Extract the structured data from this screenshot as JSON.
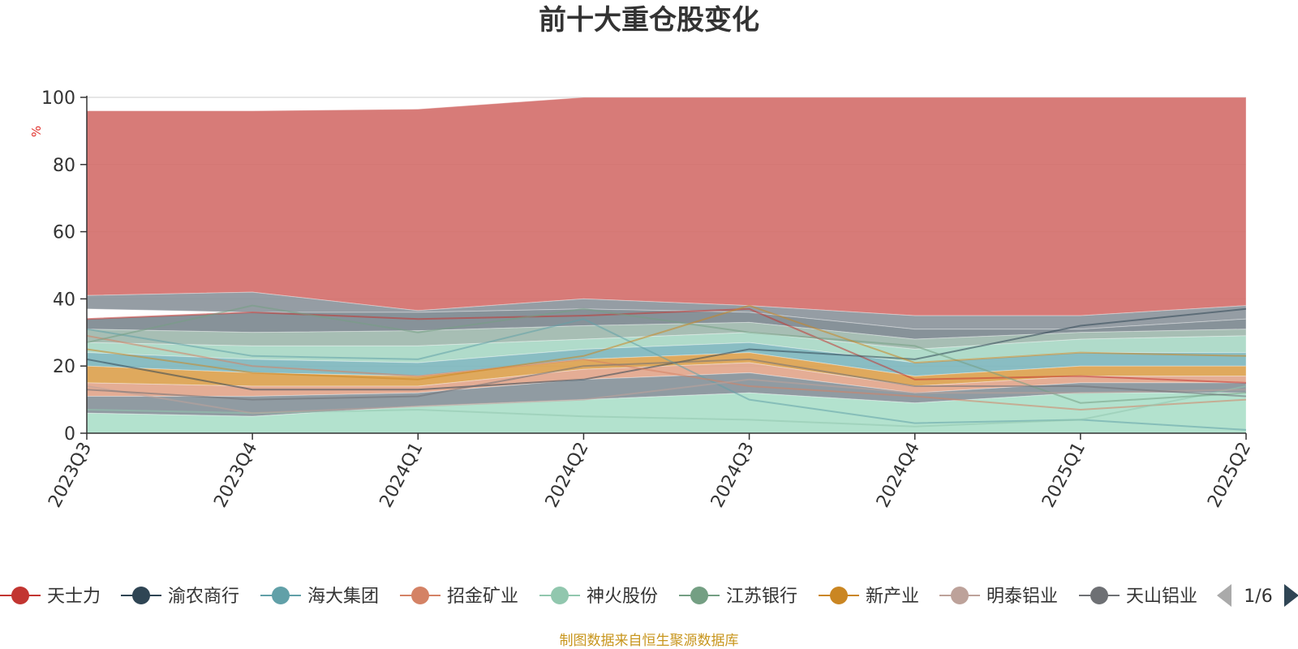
{
  "chart_data": {
    "type": "area",
    "title": "前十大重仓股变化",
    "yunit": "%",
    "ylim": [
      0,
      100
    ],
    "yticks": [
      0,
      20,
      40,
      60,
      80,
      100
    ],
    "categories": [
      "2023Q3",
      "2023Q4",
      "2024Q1",
      "2024Q2",
      "2024Q3",
      "2024Q4",
      "2025Q1",
      "2025Q2"
    ],
    "stack_bands": [
      {
        "lower": [
          41,
          42,
          36.5,
          40,
          38,
          35,
          35,
          38
        ],
        "upper": [
          96,
          96,
          96.5,
          100,
          100,
          100,
          100,
          100
        ],
        "color": "#d4706c"
      },
      {
        "lower": [
          37,
          36,
          36,
          37,
          36,
          31,
          31,
          34
        ],
        "upper": [
          41,
          42,
          36.5,
          40,
          38,
          35,
          35,
          38
        ],
        "color": "#8c959c"
      },
      {
        "lower": [
          31,
          30,
          30.5,
          32,
          33,
          28,
          30,
          31
        ],
        "upper": [
          34,
          36,
          36,
          37,
          36,
          31,
          31,
          34
        ],
        "color": "#7d8990"
      },
      {
        "lower": [
          27,
          26,
          26,
          28,
          30,
          25,
          28,
          29
        ],
        "upper": [
          31,
          30,
          30.5,
          32,
          33,
          28,
          30,
          31
        ],
        "color": "#9fb9ae"
      },
      {
        "lower": [
          24,
          22,
          21,
          25,
          27,
          21,
          24,
          24
        ],
        "upper": [
          27,
          26,
          26,
          28,
          30,
          25,
          28,
          29
        ],
        "color": "#a9d8c6"
      },
      {
        "lower": [
          20,
          18,
          17,
          22,
          24,
          17,
          20,
          20
        ],
        "upper": [
          24,
          22,
          21,
          25,
          27,
          21,
          24,
          24
        ],
        "color": "#7fb7be"
      },
      {
        "lower": [
          15,
          14,
          14,
          19,
          21,
          14,
          17,
          17
        ],
        "upper": [
          20,
          18,
          17,
          22,
          24,
          17,
          20,
          20
        ],
        "color": "#dca24f"
      },
      {
        "lower": [
          11,
          11,
          12,
          16,
          18,
          12,
          15,
          15
        ],
        "upper": [
          15,
          14,
          14,
          19,
          21,
          14,
          17,
          17
        ],
        "color": "#e2a68c"
      },
      {
        "lower": [
          6,
          5,
          8,
          10,
          12,
          9,
          12,
          12
        ],
        "upper": [
          11,
          11,
          12,
          16,
          18,
          12,
          15,
          15
        ],
        "color": "#87929a"
      },
      {
        "lower": [
          0,
          0,
          0,
          0,
          0,
          0,
          0,
          0
        ],
        "upper": [
          6,
          5,
          8,
          10,
          12,
          9,
          12,
          12
        ],
        "color": "#ace0ca"
      }
    ],
    "series": [
      {
        "name": "天士力",
        "values": [
          34,
          36,
          34,
          35,
          37,
          16,
          17,
          15
        ],
        "color": "#c23531"
      },
      {
        "name": "渝农商行",
        "values": [
          22,
          13,
          13,
          16,
          25,
          22,
          32,
          37
        ],
        "color": "#2f4554"
      },
      {
        "name": "海大集团",
        "values": [
          31,
          23,
          22,
          34,
          10,
          3,
          4,
          1
        ],
        "color": "#61a0a8"
      },
      {
        "name": "招金矿业",
        "values": [
          29,
          20,
          17,
          22,
          14,
          11,
          7,
          10
        ],
        "color": "#d48265"
      },
      {
        "name": "神火股份",
        "values": [
          7,
          6,
          7,
          5,
          4,
          2,
          4,
          14
        ],
        "color": "#91c7ae"
      },
      {
        "name": "江苏银行",
        "values": [
          27,
          38,
          30,
          37,
          30,
          26,
          9,
          12
        ],
        "color": "#749f83"
      },
      {
        "name": "新产业",
        "values": [
          25,
          18,
          16,
          23,
          38,
          21,
          24,
          23
        ],
        "color": "#ca8622"
      },
      {
        "name": "明泰铝业",
        "values": [
          14,
          6,
          8,
          10,
          16,
          12,
          12,
          13
        ],
        "color": "#bda29a"
      },
      {
        "name": "天山铝业",
        "values": [
          13,
          10,
          11,
          20,
          22,
          14,
          14,
          11
        ],
        "color": "#6e7074"
      }
    ],
    "legend_position": "bottom",
    "grid": true
  },
  "legend": {
    "items": [
      {
        "label": "天士力",
        "color": "#c23531"
      },
      {
        "label": "渝农商行",
        "color": "#2f4554"
      },
      {
        "label": "海大集团",
        "color": "#61a0a8"
      },
      {
        "label": "招金矿业",
        "color": "#d48265"
      },
      {
        "label": "神火股份",
        "color": "#91c7ae"
      },
      {
        "label": "江苏银行",
        "color": "#749f83"
      },
      {
        "label": "新产业",
        "color": "#ca8622"
      },
      {
        "label": "明泰铝业",
        "color": "#bda29a"
      },
      {
        "label": "天山铝业",
        "color": "#6e7074"
      }
    ],
    "page_indicator": "1/6",
    "prev_icon": "triangle-left-icon",
    "next_icon": "triangle-right-icon"
  },
  "footer": {
    "source": "制图数据来自恒生聚源数据库"
  }
}
